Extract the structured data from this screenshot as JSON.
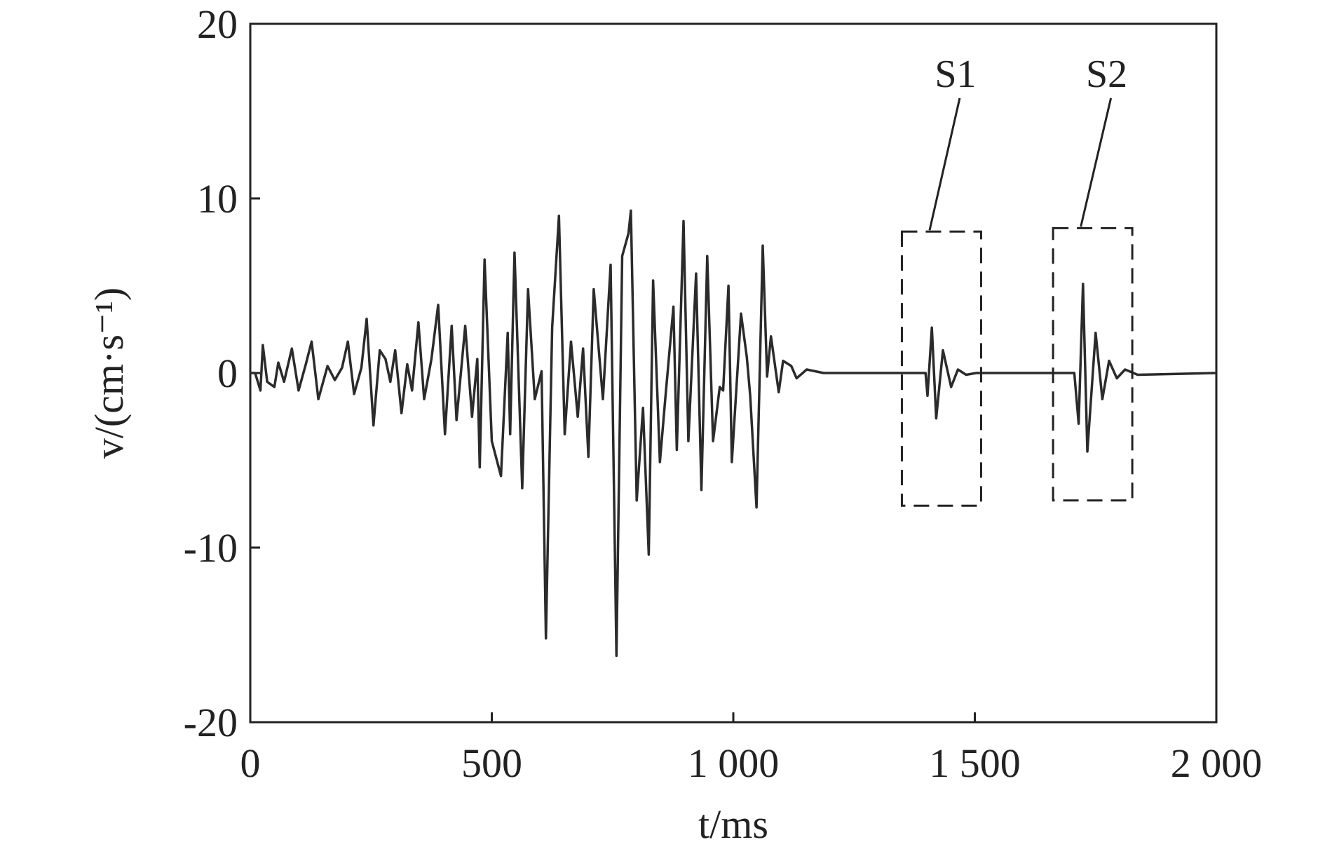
{
  "chart_data": {
    "type": "line",
    "xlabel": "t/ms",
    "ylabel": "v/(cm·s⁻¹)",
    "xlim": [
      0,
      2000
    ],
    "ylim": [
      -20,
      20
    ],
    "xticks": [
      0,
      500,
      {
        "value": 1000,
        "label": "1 000"
      },
      {
        "value": 1500,
        "label": "1 500"
      },
      {
        "value": 2000,
        "label": "2 000"
      }
    ],
    "yticks": [
      -20,
      -10,
      0,
      10,
      20
    ],
    "color": "#2b2b2b",
    "x": [
      0,
      10,
      21,
      26,
      35,
      50,
      58,
      70,
      86,
      100,
      115,
      127,
      141,
      160,
      175,
      190,
      202,
      215,
      230,
      241,
      255,
      268,
      280,
      290,
      300,
      313,
      325,
      335,
      348,
      360,
      375,
      389,
      403,
      417,
      427,
      445,
      459,
      470,
      475,
      485,
      500,
      519,
      533,
      538,
      547,
      563,
      575,
      589,
      603,
      612,
      625,
      639,
      651,
      664,
      678,
      689,
      700,
      711,
      730,
      746,
      758,
      770,
      783,
      788,
      800,
      813,
      825,
      834,
      848,
      859,
      876,
      883,
      897,
      907,
      923,
      934,
      946,
      958,
      972,
      979,
      990,
      997,
      1016,
      1028,
      1035,
      1048,
      1061,
      1070,
      1078,
      1094,
      1103,
      1120,
      1131,
      1152,
      1187,
      1398,
      1402,
      1411,
      1420,
      1434,
      1451,
      1465,
      1482,
      1503,
      1706,
      1715,
      1724,
      1733,
      1750,
      1764,
      1778,
      1794,
      1811,
      1837,
      2000
    ],
    "values": [
      0,
      0,
      -1.0,
      1.6,
      -0.5,
      -0.8,
      0.6,
      -0.5,
      1.4,
      -1.0,
      0.5,
      1.8,
      -1.5,
      0.4,
      -0.4,
      0.3,
      1.8,
      -1.2,
      0.3,
      3.1,
      -3.0,
      1.3,
      0.8,
      -0.5,
      1.3,
      -2.3,
      0.5,
      -1.0,
      2.9,
      -1.5,
      0.8,
      3.9,
      -3.5,
      2.7,
      -2.7,
      2.7,
      -2.5,
      0.8,
      -5.4,
      6.5,
      -3.9,
      -5.9,
      2.3,
      -3.5,
      6.9,
      -6.6,
      4.8,
      -1.5,
      0.1,
      -15.2,
      2.6,
      9.0,
      -3.5,
      1.8,
      -2.5,
      1.4,
      -4.8,
      4.8,
      -1.5,
      6.2,
      -16.2,
      6.7,
      8.0,
      9.3,
      -7.3,
      -2.0,
      -10.4,
      5.3,
      -5.1,
      -1.5,
      3.8,
      -4.4,
      8.7,
      -3.9,
      5.7,
      -6.7,
      6.7,
      -3.9,
      -0.8,
      -1.0,
      5.0,
      -5.1,
      3.4,
      0.9,
      -1.3,
      -7.7,
      7.3,
      -0.2,
      2.1,
      -1.1,
      0.7,
      0.4,
      -0.3,
      0.2,
      0,
      0,
      -1.3,
      2.6,
      -2.6,
      1.3,
      -0.8,
      0.2,
      -0.1,
      0,
      0,
      -2.9,
      5.1,
      -4.5,
      2.3,
      -1.5,
      0.7,
      -0.3,
      0.2,
      -0.1,
      0
    ],
    "annotations": [
      {
        "text": "S1",
        "x": [
          1349,
          1513
        ],
        "y": [
          -7.6,
          8.1
        ]
      },
      {
        "text": "S2",
        "x": [
          1662,
          1826
        ],
        "y": [
          -7.3,
          8.3
        ]
      }
    ]
  }
}
